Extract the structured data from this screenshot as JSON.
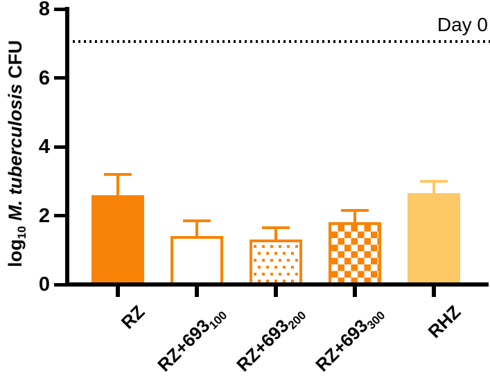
{
  "chart_data": {
    "type": "bar",
    "title": "",
    "ylabel_text": "log10 M. tuberculosis CFU",
    "ylabel_parts": {
      "prefix": "log",
      "subscript": "10",
      "italic": " M. tuberculosis",
      "suffix": " CFU"
    },
    "ylim": [
      0,
      8
    ],
    "yticks": [
      0,
      2,
      4,
      6,
      8
    ],
    "categories": [
      {
        "main": "RZ",
        "sub": ""
      },
      {
        "main": "RZ+693",
        "sub": "100"
      },
      {
        "main": "RZ+693",
        "sub": "200"
      },
      {
        "main": "RZ+693",
        "sub": "300"
      },
      {
        "main": "RHZ",
        "sub": ""
      }
    ],
    "values": [
      2.6,
      1.4,
      1.3,
      1.8,
      2.65
    ],
    "errors_plus": [
      0.6,
      0.45,
      0.35,
      0.35,
      0.35
    ],
    "bar_styles": [
      "solid",
      "open",
      "dots",
      "checker",
      "solid-light"
    ],
    "bar_color_keys": [
      "orange",
      "orange",
      "orange",
      "orange",
      "light_orange"
    ],
    "colors": {
      "orange": "#F98306",
      "light_orange": "#FCC966",
      "axis": "#000000"
    },
    "reference_line": {
      "value": 7.05,
      "label": "Day 0",
      "style": "dotted"
    },
    "grid": false,
    "legend_position": "none"
  }
}
